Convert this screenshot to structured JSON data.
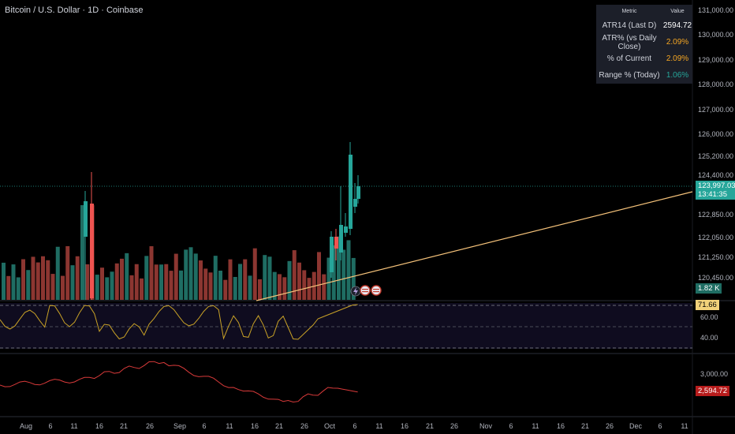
{
  "header": {
    "symbol_title": "Bitcoin / U.S. Dollar · 1D · Coinbase"
  },
  "atr_table": {
    "col_metric": "Metric",
    "col_value": "Value",
    "rows": [
      {
        "label": "ATR14 (Last D)",
        "value": "2594.72",
        "color": "#ffffff"
      },
      {
        "label": "ATR% (vs Daily Close)",
        "value": "2.09%",
        "color": "#f5a623"
      },
      {
        "label": "% of Current",
        "value": "2.09%",
        "color": "#f5a623"
      },
      {
        "label": "Range % (Today)",
        "value": "1.06%",
        "color": "#26a69a"
      }
    ]
  },
  "price_axis": {
    "labels": [
      "131,000.00",
      "130,000.00",
      "129,000.00",
      "128,000.00",
      "127,000.00",
      "126,000.00",
      "125,200.00",
      "124,400.00",
      "122,850.00",
      "122,050.00",
      "121,250.00",
      "120,450.00"
    ],
    "current_price": "123,997.03",
    "countdown": "13:41:35",
    "volume_tag": "1.82 K"
  },
  "rsi_axis": {
    "labels": [
      "60.00",
      "40.00"
    ],
    "current": "71.66"
  },
  "atr_axis": {
    "labels": [
      "3,000.00"
    ],
    "current": "2,594.72"
  },
  "time_axis": [
    "Aug",
    "6",
    "11",
    "16",
    "21",
    "26",
    "Sep",
    "6",
    "11",
    "16",
    "21",
    "26",
    "Oct",
    "6",
    "11",
    "16",
    "21",
    "26",
    "Nov",
    "6",
    "11",
    "16",
    "21",
    "26",
    "Dec",
    "6",
    "11"
  ],
  "colors": {
    "up": "#26a69a",
    "down": "#ef5350",
    "vol_up": "#1f6d63",
    "vol_down": "#8c3631",
    "trendline": "#f5c27a",
    "rsi": "#c9a227",
    "atr": "#d93a3a"
  }
}
